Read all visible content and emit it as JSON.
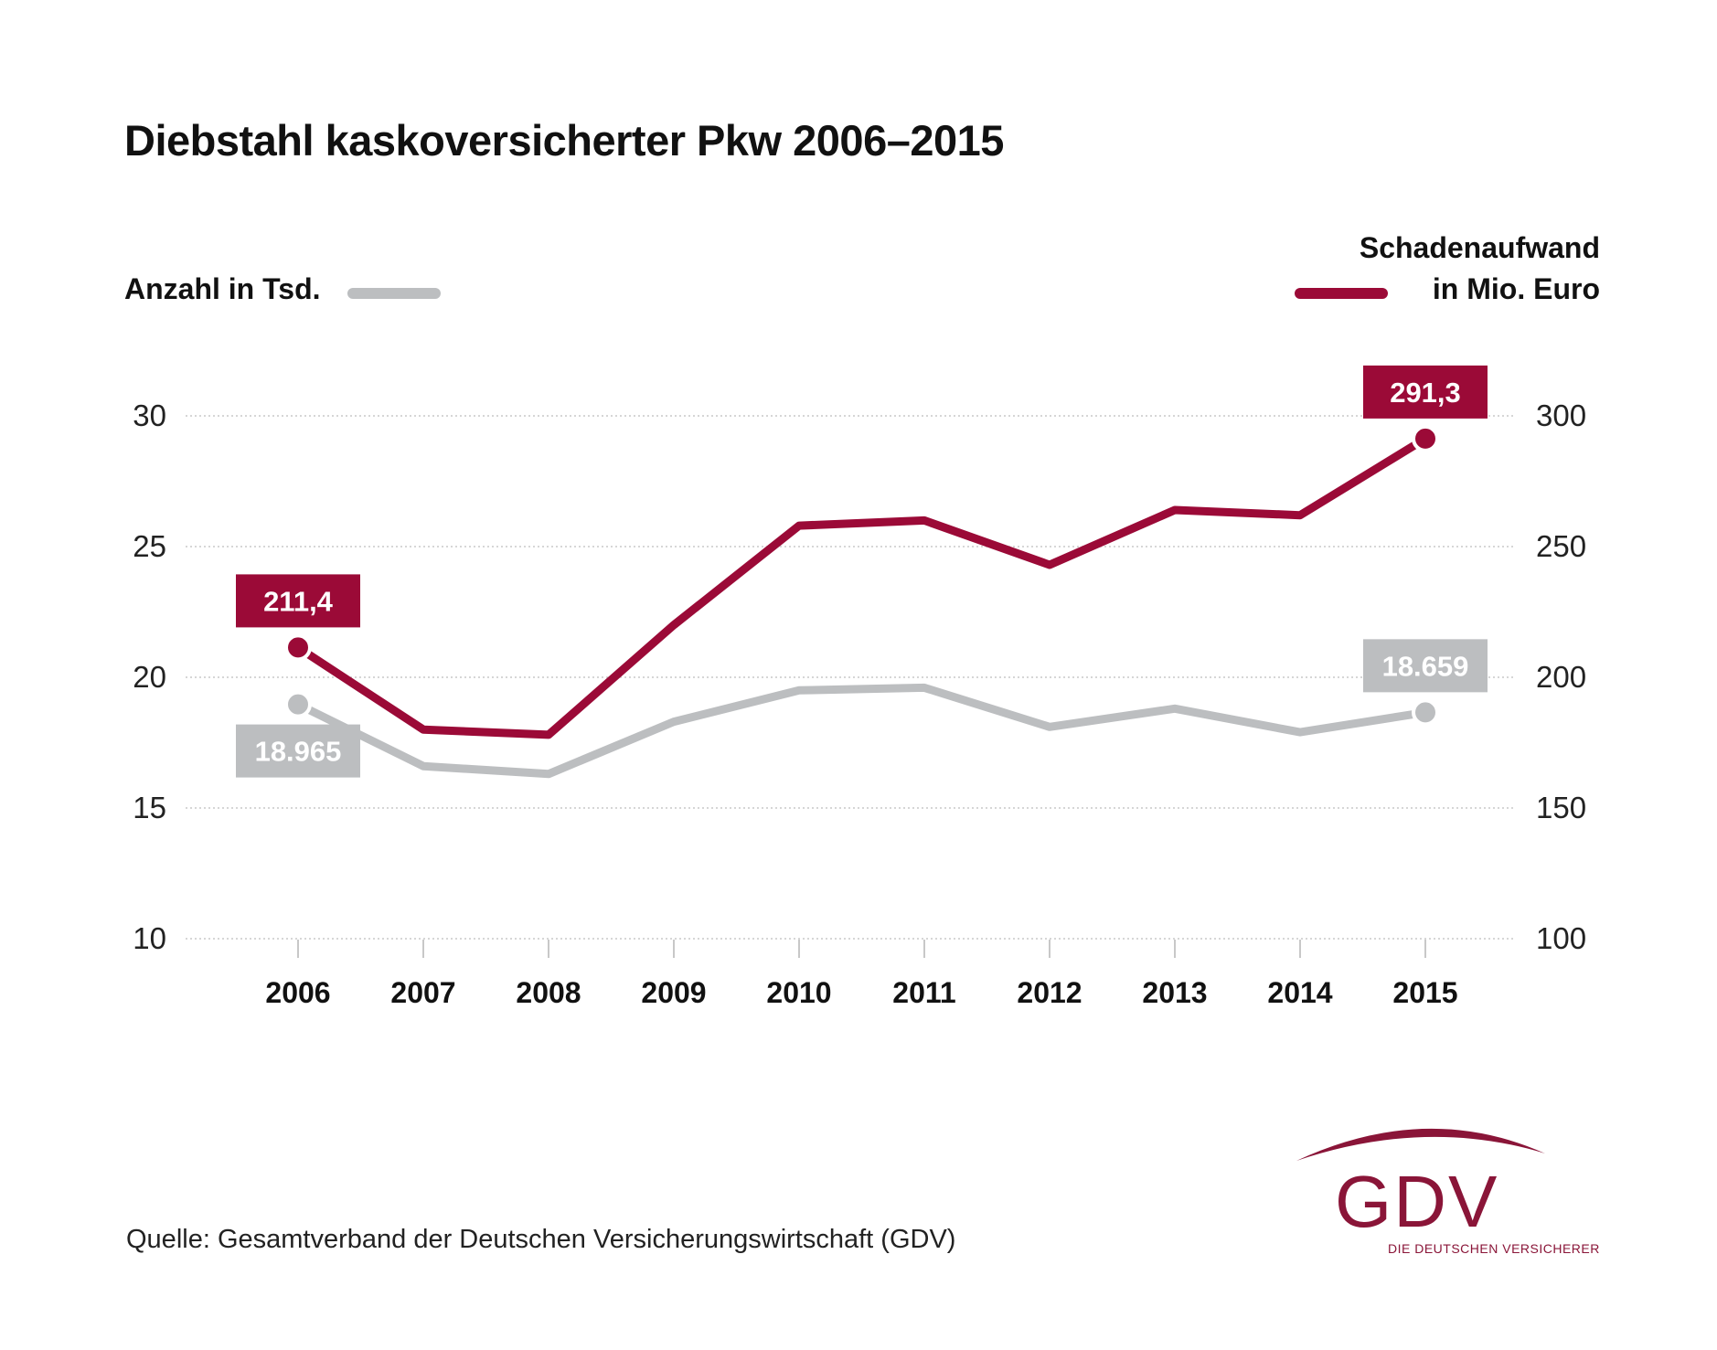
{
  "title": "Diebstahl kaskoversicherter Pkw 2006–2015",
  "chart_data": {
    "type": "line",
    "categories": [
      "2006",
      "2007",
      "2008",
      "2009",
      "2010",
      "2011",
      "2012",
      "2013",
      "2014",
      "2015"
    ],
    "y_left": {
      "label": "Anzahl in Tsd.",
      "ylim": [
        10,
        30
      ],
      "ticks": [
        "10",
        "15",
        "20",
        "25",
        "30"
      ]
    },
    "y_right": {
      "label_line1": "Schadenaufwand",
      "label_line2": "in Mio. Euro",
      "ylim": [
        100,
        300
      ],
      "ticks": [
        "100",
        "150",
        "200",
        "250",
        "300"
      ]
    },
    "grid": true,
    "series": [
      {
        "name": "Anzahl in Tsd.",
        "axis": "left",
        "color": "#bcbec0",
        "values": [
          18.965,
          16.6,
          16.3,
          18.3,
          19.5,
          19.6,
          18.1,
          18.8,
          17.9,
          18.659
        ]
      },
      {
        "name": "Schadenaufwand in Mio. Euro",
        "axis": "right",
        "color": "#9b0a37",
        "values": [
          211.4,
          180,
          178,
          220,
          258,
          260,
          243,
          264,
          262,
          291.3
        ]
      }
    ],
    "annotations": [
      {
        "series": 1,
        "index": 0,
        "text": "211,4"
      },
      {
        "series": 1,
        "index": 9,
        "text": "291,3"
      },
      {
        "series": 0,
        "index": 0,
        "text": "18.965"
      },
      {
        "series": 0,
        "index": 9,
        "text": "18.659"
      }
    ]
  },
  "source": "Quelle: Gesamtverband der Deutschen Versicherungswirtschaft (GDV)",
  "logo": {
    "text": "GDV",
    "tagline": "DIE DEUTSCHEN VERSICHERER",
    "color": "#8a1538"
  }
}
